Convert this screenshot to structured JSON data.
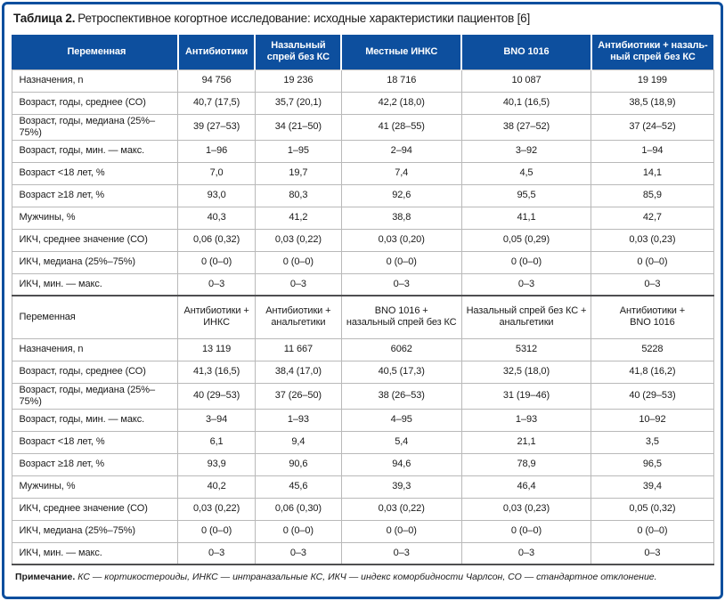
{
  "caption": {
    "label": "Таблица 2.",
    "text": "Ретроспективное когортное исследование: исходные характеристики пациентов [6]"
  },
  "colors": {
    "header_bg": "#0d4f9e",
    "frame_border": "#0d4f9e",
    "grid_line": "#b9b9b9",
    "section_divider": "#4f4f51",
    "header_text": "#ffffff"
  },
  "table": {
    "sections": [
      {
        "header": [
          "Переменная",
          "Антибиотики",
          "Назальный\nспрей без КС",
          "Местные ИНКС",
          "BNO 1016",
          "Антибиотики + назаль-\nный спрей без КС"
        ],
        "rows": [
          [
            "Назначения, n",
            "94 756",
            "19 236",
            "18 716",
            "10 087",
            "19 199"
          ],
          [
            "Возраст, годы, среднее (СО)",
            "40,7 (17,5)",
            "35,7 (20,1)",
            "42,2 (18,0)",
            "40,1 (16,5)",
            "38,5 (18,9)"
          ],
          [
            "Возраст, годы, медиана (25%–75%)",
            "39 (27–53)",
            "34 (21–50)",
            "41 (28–55)",
            "38 (27–52)",
            "37 (24–52)"
          ],
          [
            "Возраст, годы, мин. — макс.",
            "1–96",
            "1–95",
            "2–94",
            "3–92",
            "1–94"
          ],
          [
            "Возраст <18 лет, %",
            "7,0",
            "19,7",
            "7,4",
            "4,5",
            "14,1"
          ],
          [
            "Возраст ≥18 лет, %",
            "93,0",
            "80,3",
            "92,6",
            "95,5",
            "85,9"
          ],
          [
            "Мужчины, %",
            "40,3",
            "41,2",
            "38,8",
            "41,1",
            "42,7"
          ],
          [
            "ИКЧ, среднее значение (СО)",
            "0,06 (0,32)",
            "0,03 (0,22)",
            "0,03 (0,20)",
            "0,05 (0,29)",
            "0,03 (0,23)"
          ],
          [
            "ИКЧ, медиана (25%–75%)",
            "0 (0–0)",
            "0 (0–0)",
            "0 (0–0)",
            "0 (0–0)",
            "0 (0–0)"
          ],
          [
            "ИКЧ, мин. — макс.",
            "0–3",
            "0–3",
            "0–3",
            "0–3",
            "0–3"
          ]
        ]
      },
      {
        "header": [
          "Переменная",
          "Антибиотики +\nИНКС",
          "Антибиотики +\nанальгетики",
          "BNO 1016 +\nназальный спрей без КС",
          "Назальный спрей без КС +\nанальгетики",
          "Антибиотики +\nBNO 1016"
        ],
        "rows": [
          [
            "Назначения, n",
            "13 119",
            "11 667",
            "6062",
            "5312",
            "5228"
          ],
          [
            "Возраст, годы, среднее (СО)",
            "41,3 (16,5)",
            "38,4 (17,0)",
            "40,5 (17,3)",
            "32,5 (18,0)",
            "41,8 (16,2)"
          ],
          [
            "Возраст, годы, медиана (25%–75%)",
            "40 (29–53)",
            "37 (26–50)",
            "38 (26–53)",
            "31 (19–46)",
            "40 (29–53)"
          ],
          [
            "Возраст, годы, мин. — макс.",
            "3–94",
            "1–93",
            "4–95",
            "1–93",
            "10–92"
          ],
          [
            "Возраст <18 лет, %",
            "6,1",
            "9,4",
            "5,4",
            "21,1",
            "3,5"
          ],
          [
            "Возраст ≥18 лет, %",
            "93,9",
            "90,6",
            "94,6",
            "78,9",
            "96,5"
          ],
          [
            "Мужчины, %",
            "40,2",
            "45,6",
            "39,3",
            "46,4",
            "39,4"
          ],
          [
            "ИКЧ, среднее значение (СО)",
            "0,03 (0,22)",
            "0,06 (0,30)",
            "0,03 (0,22)",
            "0,03 (0,23)",
            "0,05 (0,32)"
          ],
          [
            "ИКЧ, медиана (25%–75%)",
            "0 (0–0)",
            "0 (0–0)",
            "0 (0–0)",
            "0 (0–0)",
            "0 (0–0)"
          ],
          [
            "ИКЧ, мин. — макс.",
            "0–3",
            "0–3",
            "0–3",
            "0–3",
            "0–3"
          ]
        ]
      }
    ]
  },
  "footnote": {
    "label": "Примечание.",
    "text": "КС — кортикостероиды, ИНКС — интраназальные КС, ИКЧ — индекс коморбидности Чарлсон, СО — стандартное отклонение."
  }
}
